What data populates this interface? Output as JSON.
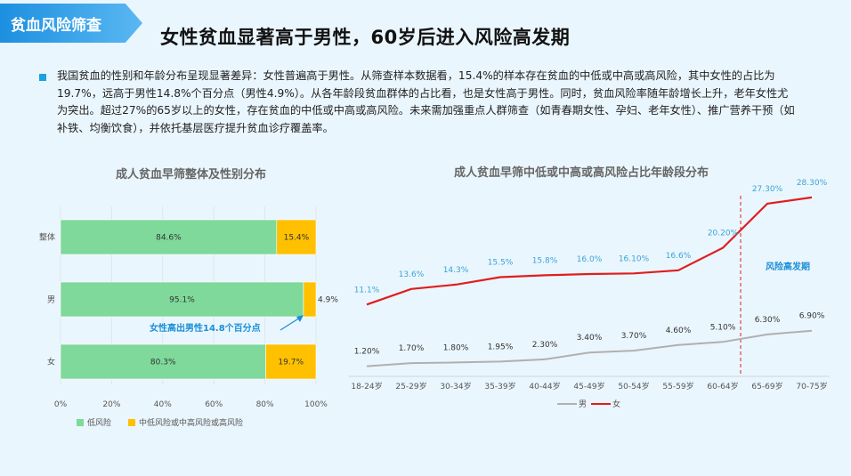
{
  "tag": "贫血风险筛查",
  "title": "女性贫血显著高于男性，60岁后进入风险高发期",
  "paragraph": "我国贫血的性别和年龄分布呈现显著差异：女性普遍高于男性。从筛查样本数据看，15.4%的样本存在贫血的中低或中高或高风险，其中女性的占比为19.7%，远高于男性14.8%个百分点（男性4.9%）。从各年龄段贫血群体的占比看，也是女性高于男性。同时，贫血风险率随年龄增长上升，老年女性尤为突出。超过27%的65岁以上的女性，存在贫血的中低或中高或高风险。未来需加强重点人群筛查（如青春期女性、孕妇、老年女性）、推广营养干预（如补铁、均衡饮食），并依托基层医疗提升贫血诊疗覆盖率。",
  "colors": {
    "low": "#7ed99a",
    "high": "#ffc000",
    "male": "#b0b0b0",
    "female": "#e01e1e",
    "accent": "#1a8fd8"
  },
  "chart_data": [
    {
      "type": "bar",
      "orientation": "horizontal-stacked",
      "title": "成人贫血早筛整体及性别分布",
      "categories": [
        "整体",
        "男",
        "女"
      ],
      "series": [
        {
          "name": "低风险",
          "values": [
            84.6,
            95.1,
            80.3
          ],
          "labels": [
            "84.6%",
            "95.1%",
            "80.3%"
          ]
        },
        {
          "name": "中低风险或中高风险或高风险",
          "values": [
            15.4,
            4.9,
            19.7
          ],
          "labels": [
            "15.4%",
            "4.9%",
            "19.7%"
          ]
        }
      ],
      "xticks": [
        "0%",
        "20%",
        "40%",
        "60%",
        "80%",
        "100%"
      ],
      "xlim": [
        0,
        100
      ],
      "annotation": "女性高出男性14.8个百分点",
      "legend": "bottom-left"
    },
    {
      "type": "line",
      "title": "成人贫血早筛中低或中高或高风险占比年龄段分布",
      "categories": [
        "18-24岁",
        "25-29岁",
        "30-34岁",
        "35-39岁",
        "40-44岁",
        "45-49岁",
        "50-54岁",
        "55-59岁",
        "60-64岁",
        "65-69岁",
        "70-75岁"
      ],
      "series": [
        {
          "name": "男",
          "values": [
            1.2,
            1.7,
            1.8,
            1.95,
            2.3,
            3.4,
            3.7,
            4.6,
            5.1,
            6.3,
            6.9
          ],
          "labels": [
            "1.20%",
            "1.70%",
            "1.80%",
            "1.95%",
            "2.30%",
            "3.40%",
            "3.70%",
            "4.60%",
            "5.10%",
            "6.30%",
            "6.90%"
          ]
        },
        {
          "name": "女",
          "values": [
            11.1,
            13.6,
            14.3,
            15.5,
            15.8,
            16.0,
            16.1,
            16.6,
            20.2,
            27.3,
            28.3
          ],
          "labels": [
            "11.1%",
            "13.6%",
            "14.3%",
            "15.5%",
            "15.8%",
            "16.0%",
            "16.10%",
            "16.6%",
            "20.20%",
            "27.30%",
            "28.30%"
          ]
        }
      ],
      "ylim": [
        0,
        30
      ],
      "annotation": "风险高发期",
      "marker_category": "60-64岁",
      "legend": "bottom-center"
    }
  ]
}
